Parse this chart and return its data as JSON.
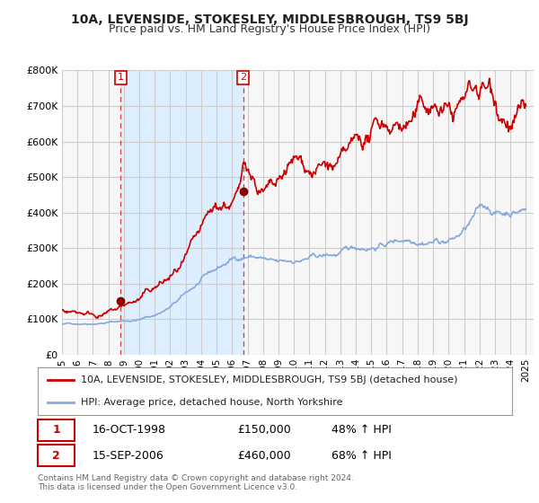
{
  "title": "10A, LEVENSIDE, STOKESLEY, MIDDLESBROUGH, TS9 5BJ",
  "subtitle": "Price paid vs. HM Land Registry's House Price Index (HPI)",
  "title_fontsize": 10,
  "subtitle_fontsize": 9,
  "bg_color": "#ffffff",
  "plot_bg_color": "#f7f7f7",
  "grid_color": "#cccccc",
  "shade_color": "#ddeeff",
  "ylabel_ticks": [
    "£0",
    "£100K",
    "£200K",
    "£300K",
    "£400K",
    "£500K",
    "£600K",
    "£700K",
    "£800K"
  ],
  "ytick_values": [
    0,
    100000,
    200000,
    300000,
    400000,
    500000,
    600000,
    700000,
    800000
  ],
  "ylim": [
    0,
    800000
  ],
  "xlim_start": 1995.0,
  "xlim_end": 2025.5,
  "sale1_year": 1998.79,
  "sale1_price": 150000,
  "sale2_year": 2006.71,
  "sale2_price": 460000,
  "sale1_label": "1",
  "sale2_label": "2",
  "sale1_info": "16-OCT-1998",
  "sale1_price_str": "£150,000",
  "sale1_hpi": "48% ↑ HPI",
  "sale2_info": "15-SEP-2006",
  "sale2_price_str": "£460,000",
  "sale2_hpi": "68% ↑ HPI",
  "legend_line1": "10A, LEVENSIDE, STOKESLEY, MIDDLESBROUGH, TS9 5BJ (detached house)",
  "legend_line2": "HPI: Average price, detached house, North Yorkshire",
  "footer": "Contains HM Land Registry data © Crown copyright and database right 2024.\nThis data is licensed under the Open Government Licence v3.0.",
  "red_color": "#cc0000",
  "blue_color": "#88aadd",
  "vline_color": "#dd4444",
  "dot_color": "#880000"
}
